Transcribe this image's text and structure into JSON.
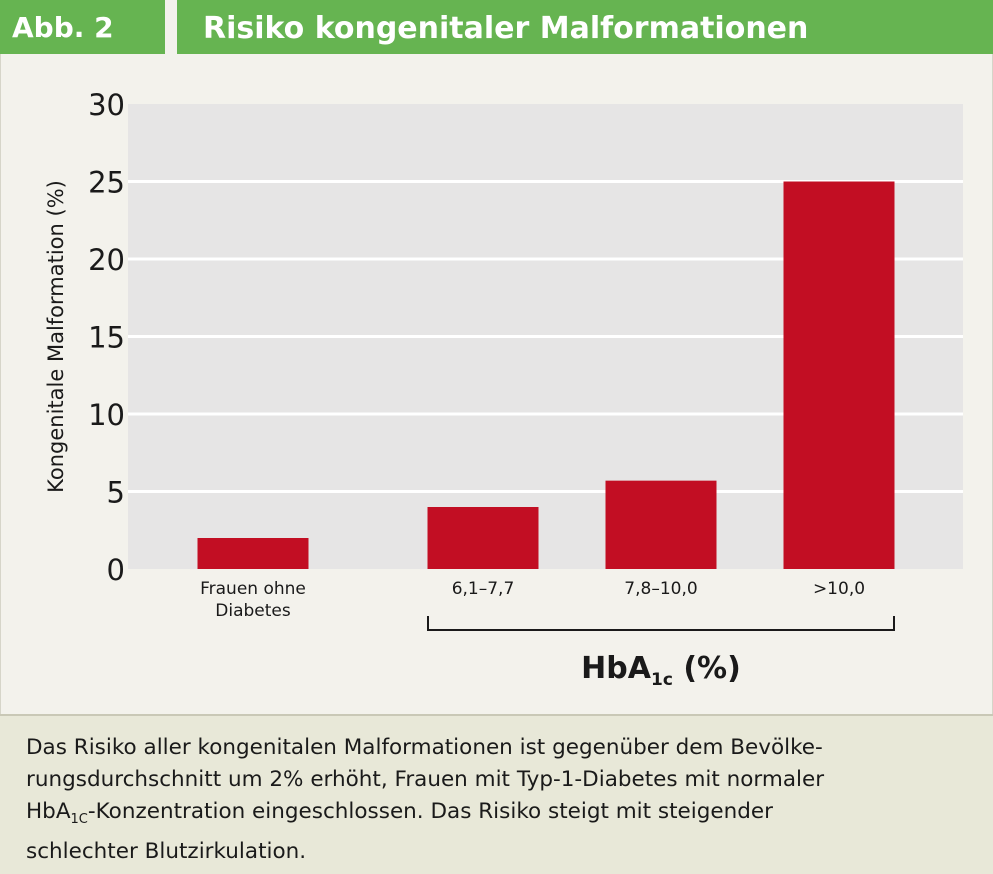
{
  "header": {
    "figure_label": "Abb. 2",
    "title": "Risiko kongenitaler Malformationen"
  },
  "chart_data": {
    "type": "bar",
    "categories": [
      [
        "Frauen ohne",
        "Diabetes"
      ],
      [
        "6,1–7,7"
      ],
      [
        "7,8–10,0"
      ],
      [
        ">10,0"
      ]
    ],
    "values": [
      2,
      4,
      5.7,
      25
    ],
    "ylabel": "Kongenitale Malformation (%)",
    "xlabel_main": "HbA",
    "xlabel_sub": "1c",
    "xlabel_tail": " (%)",
    "ylim": [
      0,
      30
    ],
    "yticks": [
      0,
      5,
      10,
      15,
      20,
      25,
      30
    ],
    "grid": true,
    "colors": {
      "bar": "#c20e23",
      "plot_bg": "#e6e5e5",
      "grid": "#ffffff"
    }
  },
  "caption": {
    "line1": "Das Risiko aller kongenitalen Malformationen ist gegenüber dem Bevölke-",
    "line2": "rungsdurchschnitt um 2% erhöht, Frauen mit Typ-1-Diabetes mit normaler",
    "line3_pre": "HbA",
    "line3_sub": "1C",
    "line3_post": "-Konzentration eingeschlossen. Das Risiko steigt mit steigender",
    "line4": "schlechter Blutzirkulation."
  }
}
